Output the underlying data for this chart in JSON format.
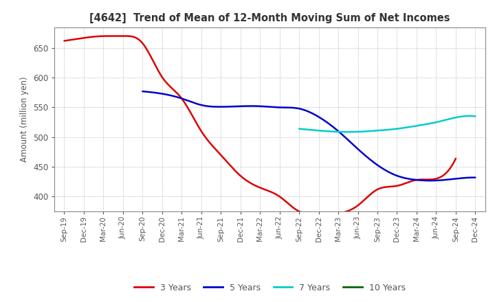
{
  "title": "[4642]  Trend of Mean of 12-Month Moving Sum of Net Incomes",
  "ylabel": "Amount (million yen)",
  "background_color": "#ffffff",
  "grid_color": "#999999",
  "ylim": [
    375,
    685
  ],
  "yticks": [
    400,
    450,
    500,
    550,
    600,
    650
  ],
  "x_labels": [
    "Sep-19",
    "Dec-19",
    "Mar-20",
    "Jun-20",
    "Sep-20",
    "Dec-20",
    "Mar-21",
    "Jun-21",
    "Sep-21",
    "Dec-21",
    "Mar-22",
    "Jun-22",
    "Sep-22",
    "Dec-22",
    "Mar-23",
    "Jun-23",
    "Sep-23",
    "Dec-23",
    "Mar-24",
    "Jun-24",
    "Sep-24",
    "Dec-24"
  ],
  "series": {
    "3 Years": {
      "color": "#dd0000",
      "linewidth": 1.8,
      "data_x": [
        0,
        1,
        2,
        3,
        4,
        5,
        6,
        7,
        8,
        9,
        10,
        11,
        12,
        13,
        14,
        15,
        16,
        17,
        18,
        19,
        20
      ],
      "data_y": [
        662,
        667,
        670,
        670,
        658,
        601,
        565,
        510,
        470,
        435,
        415,
        400,
        375,
        372,
        372,
        385,
        412,
        418,
        428,
        430,
        464
      ]
    },
    "5 Years": {
      "color": "#0000cc",
      "linewidth": 1.8,
      "data_x": [
        4,
        5,
        6,
        7,
        8,
        9,
        10,
        11,
        12,
        13,
        14,
        15,
        16,
        17,
        18,
        19,
        20,
        21
      ],
      "data_y": [
        577,
        573,
        565,
        554,
        551,
        552,
        552,
        550,
        548,
        534,
        510,
        480,
        453,
        435,
        428,
        427,
        430,
        432
      ]
    },
    "7 Years": {
      "color": "#00cccc",
      "linewidth": 1.8,
      "data_x": [
        12,
        13,
        14,
        15,
        16,
        17,
        18,
        19,
        20,
        21
      ],
      "data_y": [
        514,
        511,
        509,
        509,
        511,
        514,
        519,
        525,
        533,
        535
      ]
    },
    "10 Years": {
      "color": "#006600",
      "linewidth": 1.8,
      "data_x": [],
      "data_y": []
    }
  },
  "legend_labels": [
    "3 Years",
    "5 Years",
    "7 Years",
    "10 Years"
  ],
  "legend_colors": [
    "#dd0000",
    "#0000cc",
    "#00cccc",
    "#006600"
  ],
  "tick_color": "#555555",
  "label_color": "#555555",
  "title_color": "#333333"
}
